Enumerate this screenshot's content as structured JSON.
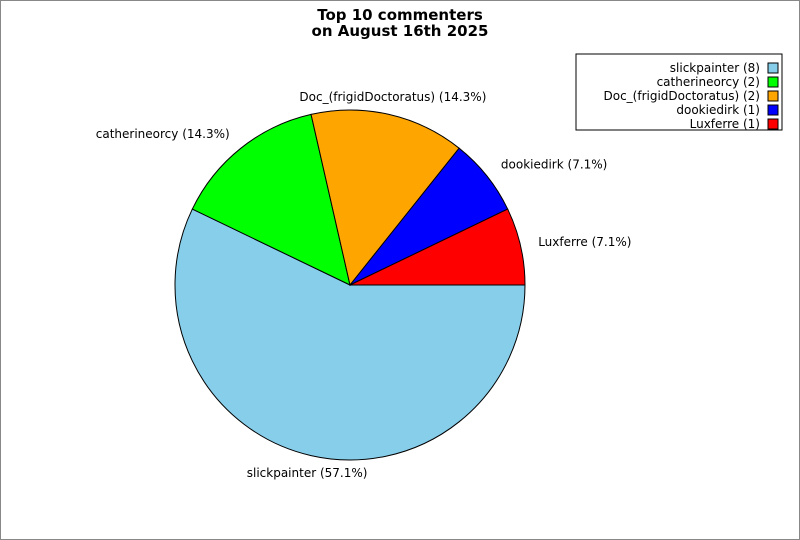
{
  "chart_data": {
    "type": "pie",
    "title": [
      "Top 10 commenters",
      "on August 16th 2025"
    ],
    "start_angle_deg": 0,
    "direction": "clockwise",
    "legend_position": "top-right",
    "slices": [
      {
        "name": "slickpainter",
        "value": 8,
        "percent_label": "slickpainter (57.1%)",
        "legend_label": "slickpainter (8)",
        "color": "#87ceeb"
      },
      {
        "name": "catherineorcy",
        "value": 2,
        "percent_label": "catherineorcy (14.3%)",
        "legend_label": "catherineorcy (2)",
        "color": "#00ff00"
      },
      {
        "name": "Doc_(frigidDoctoratus)",
        "value": 2,
        "percent_label": "Doc_(frigidDoctoratus) (14.3%)",
        "legend_label": "Doc_(frigidDoctoratus) (2)",
        "color": "#ffa500"
      },
      {
        "name": "dookiedirk",
        "value": 1,
        "percent_label": "dookiedirk (7.1%)",
        "legend_label": "dookiedirk (1)",
        "color": "#0000ff"
      },
      {
        "name": "Luxferre",
        "value": 1,
        "percent_label": "Luxferre (7.1%)",
        "legend_label": "Luxferre (1)",
        "color": "#ff0000"
      }
    ]
  }
}
